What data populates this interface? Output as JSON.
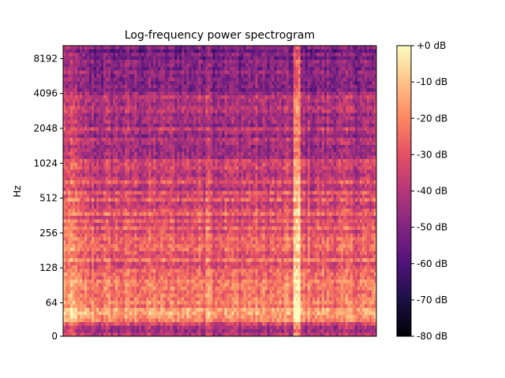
{
  "chart_data": {
    "type": "heatmap",
    "title": "Log-frequency power spectrogram",
    "xlabel": "",
    "ylabel": "Hz",
    "y_scale": "log2",
    "y_ticks": [
      {
        "value": 0,
        "label": "0"
      },
      {
        "value": 64,
        "label": "64"
      },
      {
        "value": 128,
        "label": "128"
      },
      {
        "value": 256,
        "label": "256"
      },
      {
        "value": 512,
        "label": "512"
      },
      {
        "value": 1024,
        "label": "1024"
      },
      {
        "value": 2048,
        "label": "2048"
      },
      {
        "value": 4096,
        "label": "4096"
      },
      {
        "value": 8192,
        "label": "8192"
      }
    ],
    "colorbar": {
      "colormap": "magma",
      "range_db": [
        -80,
        0
      ],
      "ticks": [
        {
          "value": 0,
          "label": "+0 dB"
        },
        {
          "value": -10,
          "label": "-10 dB"
        },
        {
          "value": -20,
          "label": "-20 dB"
        },
        {
          "value": -30,
          "label": "-30 dB"
        },
        {
          "value": -40,
          "label": "-40 dB"
        },
        {
          "value": -50,
          "label": "-50 dB"
        },
        {
          "value": -60,
          "label": "-60 dB"
        },
        {
          "value": -70,
          "label": "-70 dB"
        },
        {
          "value": -80,
          "label": "-80 dB"
        }
      ]
    },
    "colors": [
      "#000004",
      "#1c1044",
      "#4f127b",
      "#812581",
      "#b5367a",
      "#e55064",
      "#fb8761",
      "#fec287",
      "#fcfdbf"
    ]
  }
}
